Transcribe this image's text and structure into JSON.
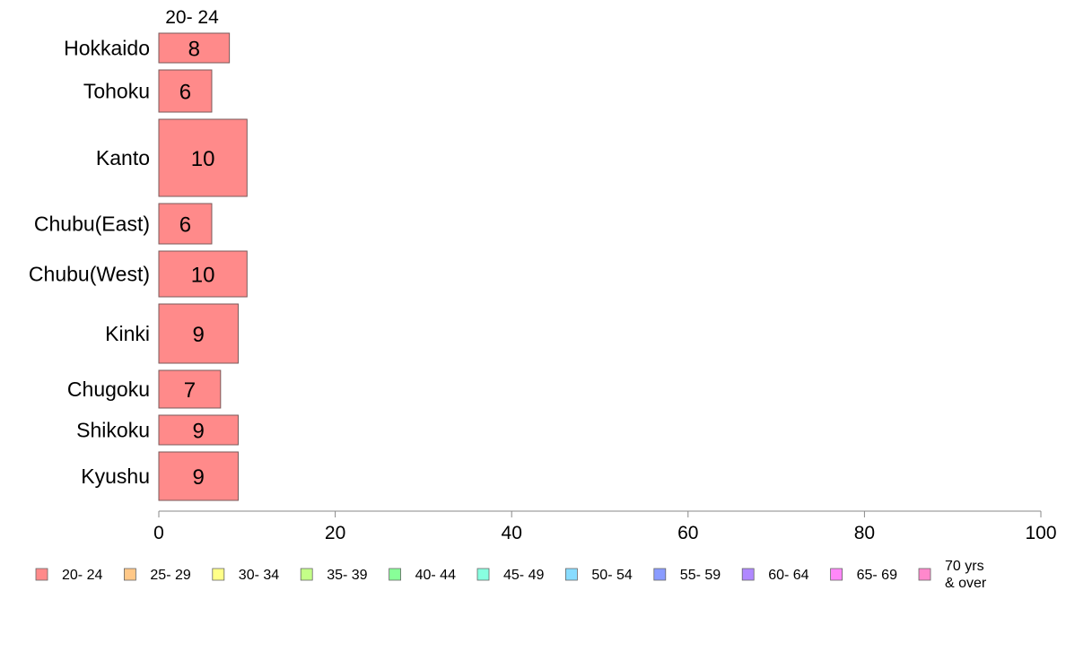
{
  "chart_data": {
    "type": "bar",
    "orientation": "horizontal",
    "stacked": true,
    "column_label": "20- 24",
    "categories": [
      "Hokkaido",
      "Tohoku",
      "Kanto",
      "Chubu(East)",
      "Chubu(West)",
      "Kinki",
      "Chugoku",
      "Shikoku",
      "Kyushu"
    ],
    "series": [
      {
        "name": "20- 24",
        "color": "#ff8a8a",
        "values": [
          8,
          6,
          10,
          6,
          10,
          9,
          7,
          9,
          9
        ],
        "labels": [
          "8",
          "6",
          "10",
          "6",
          "10",
          "9",
          "7",
          "9",
          "9"
        ]
      }
    ],
    "xlim": [
      0,
      100
    ],
    "xticks": [
      0,
      20,
      40,
      60,
      80,
      100
    ],
    "xtick_labels": [
      "0",
      "20",
      "40",
      "60",
      "80",
      "100"
    ],
    "grid": false,
    "legend_position": "bottom",
    "legend": [
      {
        "label": "20- 24",
        "color": "#ff8a8a"
      },
      {
        "label": "25- 29",
        "color": "#ffc888"
      },
      {
        "label": "30- 34",
        "color": "#ffff88"
      },
      {
        "label": "35- 39",
        "color": "#c4ff88"
      },
      {
        "label": "40- 44",
        "color": "#88ff98"
      },
      {
        "label": "45- 49",
        "color": "#88ffe0"
      },
      {
        "label": "50- 54",
        "color": "#88dcff"
      },
      {
        "label": "55- 59",
        "color": "#8a9cff"
      },
      {
        "label": "60- 64",
        "color": "#b088ff"
      },
      {
        "label": "65- 69",
        "color": "#ff88f8"
      },
      {
        "label": "70 yrs\n& over",
        "color": "#ff88cc"
      }
    ]
  }
}
